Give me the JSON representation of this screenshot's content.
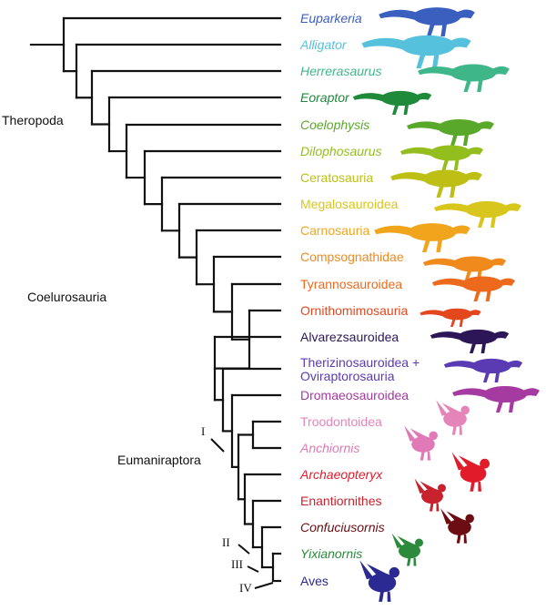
{
  "taxa": [
    {
      "name": "Euparkeria",
      "italic": true,
      "color": "#3a5fbf"
    },
    {
      "name": "Alligator",
      "italic": true,
      "color": "#56c1dd"
    },
    {
      "name": "Herrerasaurus",
      "italic": true,
      "color": "#3fb68a"
    },
    {
      "name": "Eoraptor",
      "italic": true,
      "color": "#1f8a3a"
    },
    {
      "name": "Coelophysis",
      "italic": true,
      "color": "#5aa82a"
    },
    {
      "name": "Dilophosaurus",
      "italic": true,
      "color": "#94be1e"
    },
    {
      "name": "Ceratosauria",
      "italic": false,
      "color": "#bdbf14"
    },
    {
      "name": "Megalosauroidea",
      "italic": false,
      "color": "#d9c61c"
    },
    {
      "name": "Carnosauria",
      "italic": false,
      "color": "#f0a51d"
    },
    {
      "name": "Compsognathidae",
      "italic": false,
      "color": "#f08a1c"
    },
    {
      "name": "Tyrannosauroidea",
      "italic": false,
      "color": "#ed6a1c"
    },
    {
      "name": "Ornithomimosauria",
      "italic": false,
      "color": "#e4471e"
    },
    {
      "name": "Alvarezsauroidea",
      "italic": false,
      "color": "#2c1657"
    },
    {
      "name": "Therizinosauroidea +\nOviraptorosauria",
      "italic": false,
      "color": "#5b3bb3"
    },
    {
      "name": "Dromaeosauroidea",
      "italic": false,
      "color": "#a53aa0"
    },
    {
      "name": "Troodontoidea",
      "italic": false,
      "color": "#e484b8"
    },
    {
      "name": "Anchiornis",
      "italic": true,
      "color": "#e079b5"
    },
    {
      "name": "Archaeopteryx",
      "italic": true,
      "color": "#e21b2a"
    },
    {
      "name": "Enantiornithes",
      "italic": false,
      "color": "#c8222e"
    },
    {
      "name": "Confuciusornis",
      "italic": true,
      "color": "#6b0d12"
    },
    {
      "name": "Yixianornis",
      "italic": true,
      "color": "#2c8a3c"
    },
    {
      "name": "Aves",
      "italic": false,
      "color": "#2b2a93"
    }
  ],
  "groups": {
    "theropoda": "Theropoda",
    "coelurosauria": "Coelurosauria",
    "eumaniraptora": "Eumaniraptora"
  },
  "nodes": {
    "I": "I",
    "II": "II",
    "III": "III",
    "IV": "IV"
  }
}
